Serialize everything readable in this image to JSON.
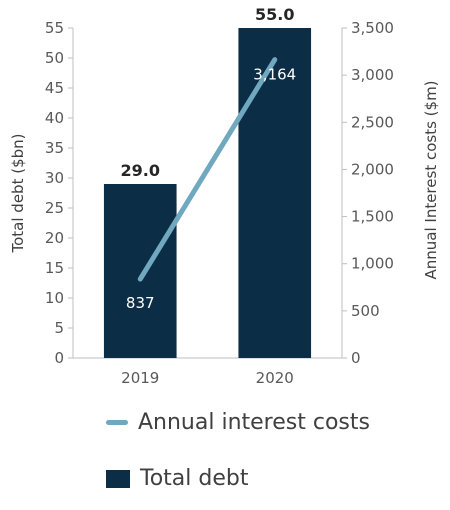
{
  "chart_data": {
    "type": "bar",
    "categories": [
      "2019",
      "2020"
    ],
    "series": [
      {
        "name": "Total debt",
        "type": "bar",
        "axis": "left",
        "values": [
          29.0,
          55.0
        ],
        "value_labels": [
          "29.0",
          "55.0"
        ],
        "color": "#0b2d45"
      },
      {
        "name": "Annual interest costs",
        "type": "line",
        "axis": "right",
        "values": [
          837,
          3164
        ],
        "value_labels": [
          "837",
          "3,164"
        ],
        "color": "#6fa8bf"
      }
    ],
    "left_axis": {
      "label": "Total debt ($bn)",
      "ylim": [
        0,
        55
      ],
      "ticks": [
        "0",
        "5",
        "10",
        "15",
        "20",
        "25",
        "30",
        "35",
        "40",
        "45",
        "50",
        "55"
      ]
    },
    "right_axis": {
      "label": "Annual Interest costs ($m)",
      "ylim": [
        0,
        3500
      ],
      "ticks": [
        "0",
        "500",
        "1,000",
        "1,500",
        "2,000",
        "2,500",
        "3,000",
        "3,500"
      ]
    },
    "grid": false,
    "legend": {
      "position": "bottom",
      "items": [
        "Annual interest costs",
        "Total debt"
      ]
    }
  }
}
